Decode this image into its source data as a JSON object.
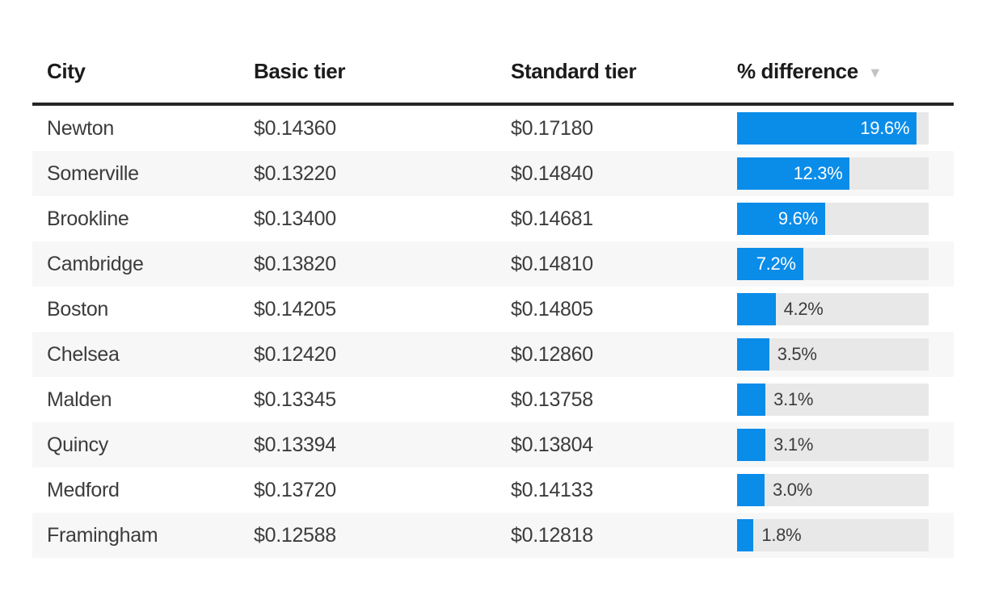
{
  "table": {
    "columns": [
      {
        "key": "city",
        "label": "City"
      },
      {
        "key": "basic",
        "label": "Basic tier"
      },
      {
        "key": "standard",
        "label": "Standard tier"
      },
      {
        "key": "diff",
        "label": "% difference",
        "sort_icon": "▼",
        "sort_state": "descending"
      }
    ],
    "rows": [
      {
        "city": "Newton",
        "basic": "$0.14360",
        "standard": "$0.17180",
        "diff_label": "19.6%",
        "diff_value": 19.6
      },
      {
        "city": "Somerville",
        "basic": "$0.13220",
        "standard": "$0.14840",
        "diff_label": "12.3%",
        "diff_value": 12.3
      },
      {
        "city": "Brookline",
        "basic": "$0.13400",
        "standard": "$0.14681",
        "diff_label": "9.6%",
        "diff_value": 9.6
      },
      {
        "city": "Cambridge",
        "basic": "$0.13820",
        "standard": "$0.14810",
        "diff_label": "7.2%",
        "diff_value": 7.2
      },
      {
        "city": "Boston",
        "basic": "$0.14205",
        "standard": "$0.14805",
        "diff_label": "4.2%",
        "diff_value": 4.2
      },
      {
        "city": "Chelsea",
        "basic": "$0.12420",
        "standard": "$0.12860",
        "diff_label": "3.5%",
        "diff_value": 3.5
      },
      {
        "city": "Malden",
        "basic": "$0.13345",
        "standard": "$0.13758",
        "diff_label": "3.1%",
        "diff_value": 3.1
      },
      {
        "city": "Quincy",
        "basic": "$0.13394",
        "standard": "$0.13804",
        "diff_label": "3.1%",
        "diff_value": 3.1
      },
      {
        "city": "Medford",
        "basic": "$0.13720",
        "standard": "$0.14133",
        "diff_label": "3.0%",
        "diff_value": 3.0
      },
      {
        "city": "Framingham",
        "basic": "$0.12588",
        "standard": "$0.12818",
        "diff_label": "1.8%",
        "diff_value": 1.8
      }
    ]
  },
  "chart_data": {
    "type": "table",
    "columns": [
      "City",
      "Basic tier",
      "Standard tier",
      "% difference"
    ],
    "rows": [
      [
        "Newton",
        "$0.14360",
        "$0.17180",
        "19.6%"
      ],
      [
        "Somerville",
        "$0.13220",
        "$0.14840",
        "12.3%"
      ],
      [
        "Brookline",
        "$0.13400",
        "$0.14681",
        "9.6%"
      ],
      [
        "Cambridge",
        "$0.13820",
        "$0.14810",
        "7.2%"
      ],
      [
        "Boston",
        "$0.14205",
        "$0.14805",
        "4.2%"
      ],
      [
        "Chelsea",
        "$0.12420",
        "$0.12860",
        "3.5%"
      ],
      [
        "Malden",
        "$0.13345",
        "$0.13758",
        "3.1%"
      ],
      [
        "Quincy",
        "$0.13394",
        "$0.13804",
        "3.1%"
      ],
      [
        "Medford",
        "$0.13720",
        "$0.14133",
        "3.0%"
      ],
      [
        "Framingham",
        "$0.12588",
        "$0.12818",
        "1.8%"
      ]
    ],
    "embedded_bar": {
      "type": "bar",
      "orientation": "horizontal",
      "column": "% difference",
      "categories": [
        "Newton",
        "Somerville",
        "Brookline",
        "Cambridge",
        "Boston",
        "Chelsea",
        "Malden",
        "Quincy",
        "Medford",
        "Framingham"
      ],
      "values": [
        19.6,
        12.3,
        9.6,
        7.2,
        4.2,
        3.5,
        3.1,
        3.1,
        3.0,
        1.8
      ],
      "xlim": [
        0,
        20.9
      ],
      "sort": "descending",
      "label_inside_threshold": 6
    }
  },
  "colors": {
    "bar_fill": "#0a8ce9",
    "bar_track": "#e8e8e8",
    "row_stripe": "#f7f7f7",
    "header_rule": "#252525",
    "header_text": "#1b1b1b",
    "body_text": "#3c3c3c",
    "bar_label_inside": "#ffffff",
    "bar_label_outside": "#3c3c3c",
    "sort_icon": "#c3c3c3",
    "background": "#ffffff"
  }
}
